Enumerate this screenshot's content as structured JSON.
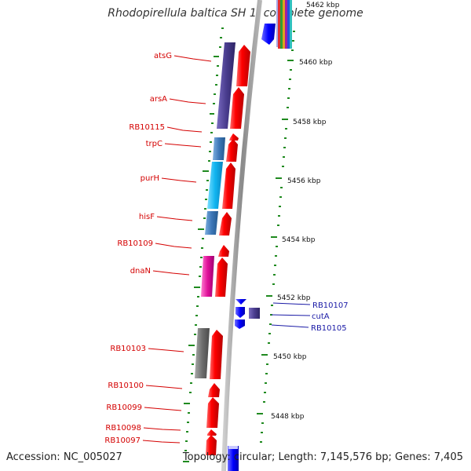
{
  "title": "Rhodopirellula baltica SH 1, complete genome",
  "footer": {
    "accession": "Accession: NC_005027",
    "topology": "Topology: circular; Length: 7,145,576 bp; Genes: 7,405"
  },
  "kbp_ticks": [
    "5462 kbp",
    "5460 kbp",
    "5458 kbp",
    "5456 kbp",
    "5454 kbp",
    "5452 kbp",
    "5450 kbp",
    "5448 kbp"
  ],
  "genes_left": [
    "atsG",
    "arsA",
    "RB10115",
    "trpC",
    "purH",
    "hisF",
    "RB10109",
    "dnaN",
    "RB10103",
    "RB10100",
    "RB10099",
    "RB10098",
    "RB10097"
  ],
  "genes_right": [
    "RB10107",
    "cutA",
    "RB10105"
  ],
  "colors": {
    "forward_strand": "#ff0000",
    "reverse_strand": "#0000ff",
    "label_left": "#d40000",
    "label_right": "#1a1aa6",
    "backbone": "#888888",
    "tick_green": "#1f8a1f"
  }
}
